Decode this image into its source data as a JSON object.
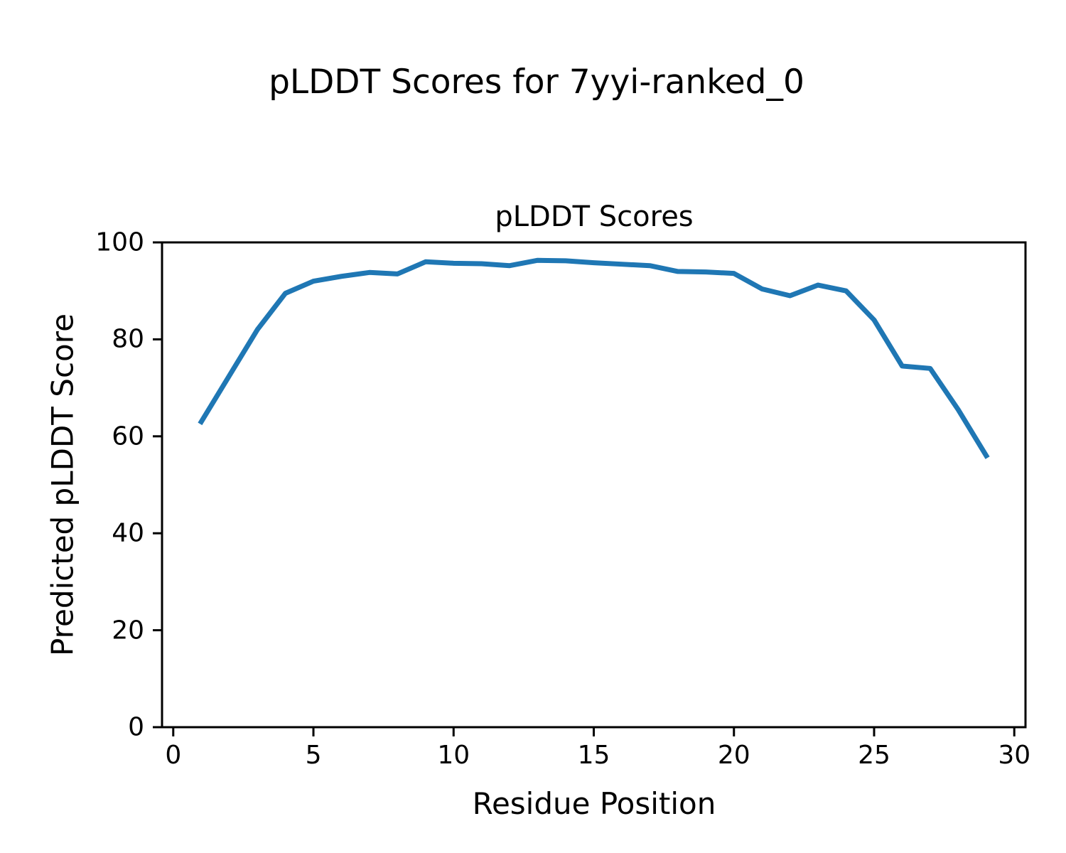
{
  "figure_title": "pLDDT Scores for 7yyi-ranked_0",
  "chart_data": {
    "type": "line",
    "title": "pLDDT Scores",
    "xlabel": "Residue Position",
    "ylabel": "Predicted pLDDT Score",
    "x": [
      1,
      2,
      3,
      4,
      5,
      6,
      7,
      8,
      9,
      10,
      11,
      12,
      13,
      14,
      15,
      16,
      17,
      18,
      19,
      20,
      21,
      22,
      23,
      24,
      25,
      26,
      27,
      28,
      29
    ],
    "y": [
      63,
      72.5,
      82,
      89.5,
      92,
      93,
      93.8,
      93.5,
      96,
      95.7,
      95.6,
      95.2,
      96.3,
      96.2,
      95.8,
      95.5,
      95.2,
      94,
      93.9,
      93.6,
      90.4,
      89,
      91.2,
      90,
      84,
      74.5,
      74,
      65.5,
      56
    ],
    "xlim": [
      -0.4,
      30.4
    ],
    "ylim": [
      0,
      100
    ],
    "xticks": [
      0,
      5,
      10,
      15,
      20,
      25,
      30
    ],
    "yticks": [
      0,
      20,
      40,
      60,
      80,
      100
    ],
    "grid": false,
    "legend": null,
    "line_color": "#1f77b4",
    "axis_color": "#000000"
  }
}
